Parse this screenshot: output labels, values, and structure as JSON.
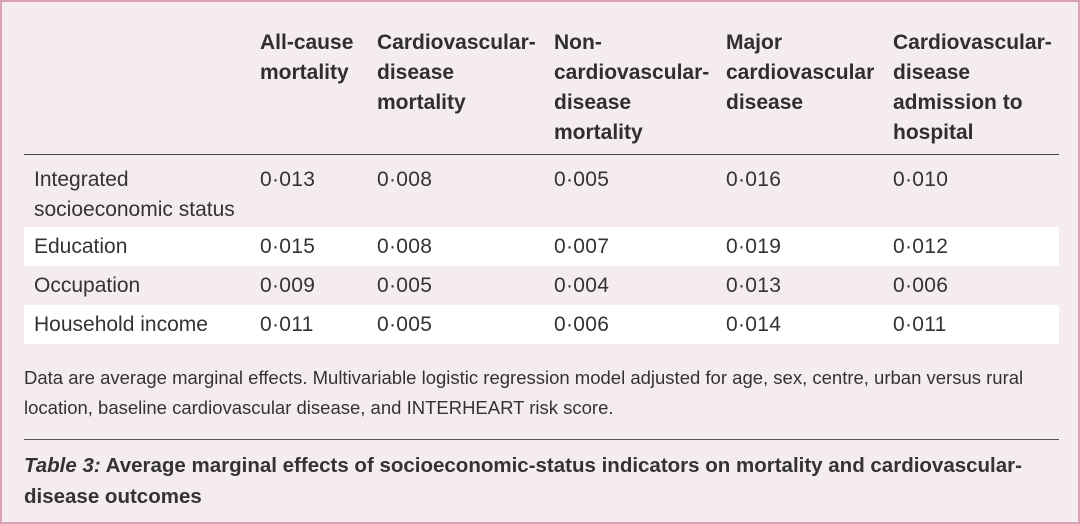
{
  "table": {
    "columns": [
      "All-cause\nmortality",
      "Cardiovascular-\ndisease\nmortality",
      "Non-\ncardiovascular-\ndisease\nmortality",
      "Major\ncardiovascular\ndisease",
      "Cardiovascular-\ndisease\nadmission to\nhospital"
    ],
    "rows": [
      {
        "label": "Integrated socioeconomic status",
        "values": [
          "0·013",
          "0·008",
          "0·005",
          "0·016",
          "0·010"
        ]
      },
      {
        "label": "Education",
        "values": [
          "0·015",
          "0·008",
          "0·007",
          "0·019",
          "0·012"
        ]
      },
      {
        "label": "Occupation",
        "values": [
          "0·009",
          "0·005",
          "0·004",
          "0·013",
          "0·006"
        ]
      },
      {
        "label": "Household income",
        "values": [
          "0·011",
          "0·005",
          "0·006",
          "0·014",
          "0·011"
        ]
      }
    ]
  },
  "footnote": "Data are average marginal effects. Multivariable logistic regression model adjusted for age, sex, centre, urban versus rural location, baseline cardiovascular disease, and INTERHEART risk score.",
  "caption": {
    "label": "Table 3:",
    "text": " Average marginal effects of socioeconomic-status indicators on mortality and cardiovascular-disease outcomes"
  },
  "colors": {
    "border": "#d9a0b6",
    "background": "#f4ecf0",
    "row_highlight": "#ffffff"
  }
}
